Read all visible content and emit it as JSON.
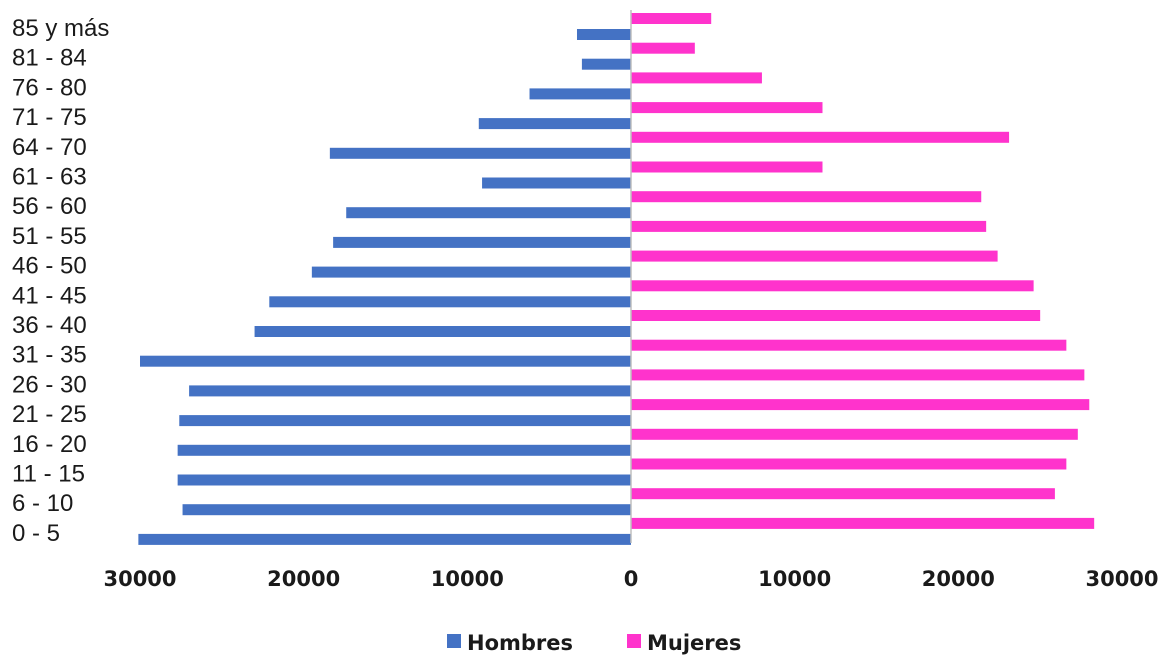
{
  "chart_data": {
    "type": "bar",
    "orientation": "horizontal",
    "layout": "population-pyramid",
    "categories": [
      "85 y más",
      "81 - 84",
      "76 - 80",
      "71 - 75",
      "64 - 70",
      "61 - 63",
      "56 - 60",
      "51 - 55",
      "46 - 50",
      "41 - 45",
      "36 - 40",
      "31 - 35",
      "26 - 30",
      "21 - 25",
      "16 - 20",
      "11 - 15",
      "6 - 10",
      "0 - 5"
    ],
    "series": [
      {
        "name": "Hombres",
        "color": "#4472c4",
        "values": [
          3300,
          3000,
          6200,
          9300,
          18400,
          9100,
          17400,
          18200,
          19500,
          22100,
          23000,
          30000,
          27000,
          27600,
          27700,
          27700,
          27400,
          30100
        ]
      },
      {
        "name": "Mujeres",
        "color": "#ff33cc",
        "values": [
          4900,
          3900,
          8000,
          11700,
          23100,
          11700,
          21400,
          21700,
          22400,
          24600,
          25000,
          26600,
          27700,
          28000,
          27300,
          26600,
          25900,
          28300
        ]
      }
    ],
    "x_ticks": [
      "30000",
      "20000",
      "10000",
      "0",
      "10000",
      "20000",
      "30000"
    ],
    "xlim": [
      -30000,
      30000
    ],
    "grid": false,
    "legend": "bottom-center",
    "title": "",
    "xlabel": "",
    "ylabel": ""
  }
}
